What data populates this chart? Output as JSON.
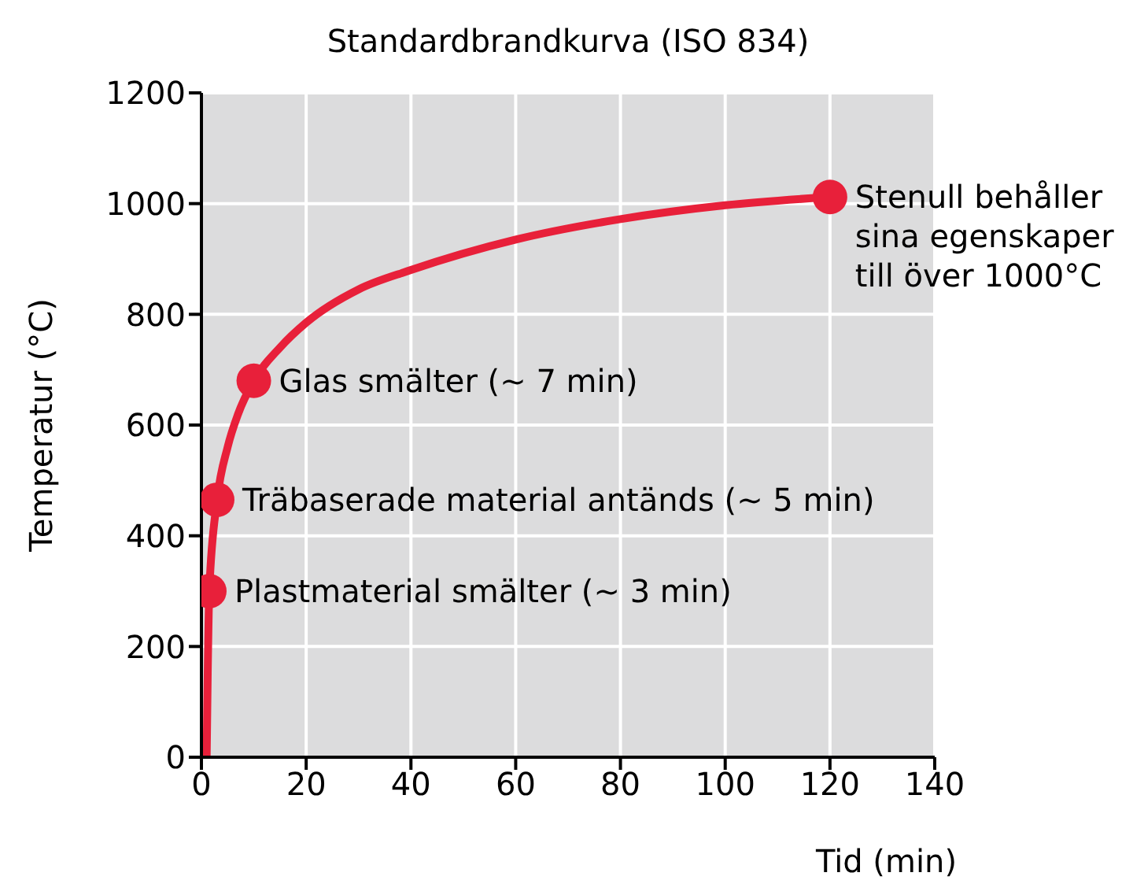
{
  "chart_data": {
    "type": "line",
    "title": "Standardbrandkurva (ISO 834)",
    "xlabel": "Tid (min)",
    "ylabel": "Temperatur (°C)",
    "xlim": [
      0,
      140
    ],
    "xticks": [
      0,
      20,
      40,
      60,
      80,
      100,
      120,
      140
    ],
    "ylim": [
      0,
      1200
    ],
    "yticks": [
      0,
      200,
      400,
      600,
      800,
      1000,
      1200
    ],
    "grid": true,
    "series": [
      {
        "color": "#e8203a",
        "marker": "none",
        "x": [
          1,
          1.2,
          1.5,
          3,
          5,
          7,
          10,
          15,
          20,
          30,
          40,
          60,
          80,
          100,
          120
        ],
        "values": [
          0,
          150,
          300,
          465,
          560,
          620,
          680,
          740,
          785,
          845,
          880,
          935,
          972,
          997,
          1012
        ]
      },
      {
        "type": "scatter",
        "color": "#e8203a",
        "marker": "circle",
        "x": [
          1.5,
          3,
          10,
          120
        ],
        "values": [
          300,
          465,
          680,
          1012
        ]
      }
    ],
    "annotations": [
      {
        "text": "Plastmaterial smälter (~ 3 min)",
        "x": 1.5,
        "y": 300
      },
      {
        "text": "Träbaserade material antänds (~ 5 min)",
        "x": 3,
        "y": 465
      },
      {
        "text": "Glas smälter (~ 7 min)",
        "x": 10,
        "y": 680
      },
      {
        "text": "Stenull behåller\nsina egenskaper\ntill över 1000°C",
        "x": 120,
        "y": 1012
      }
    ]
  }
}
